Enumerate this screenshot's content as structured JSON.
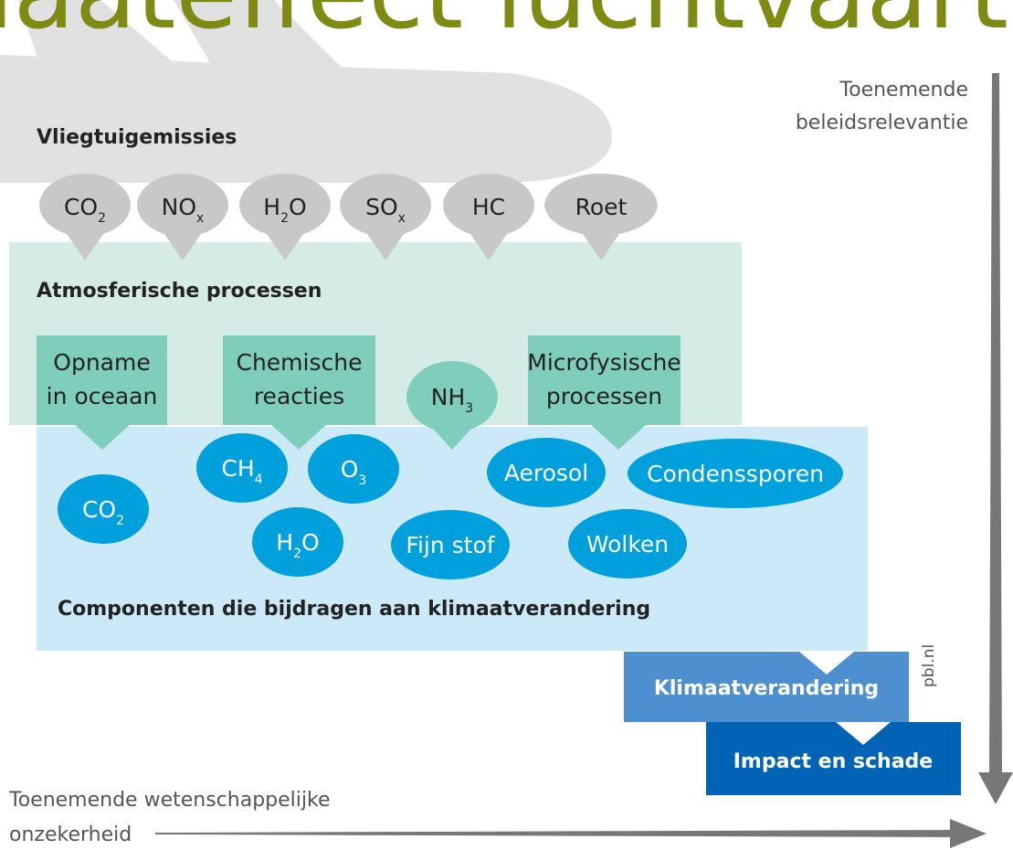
{
  "title": "Klimaateffect luchtvaart",
  "emissions": {
    "heading": "Vliegtuigemissies",
    "items": [
      {
        "label": "CO",
        "sub": "2"
      },
      {
        "label": "NO",
        "sub": "x"
      },
      {
        "label": "H",
        "sub": "2",
        "after": "O"
      },
      {
        "label": "SO",
        "sub": "x"
      },
      {
        "label": "HC"
      },
      {
        "label": "Roet"
      }
    ]
  },
  "atmosphere": {
    "heading": "Atmosferische processen",
    "boxes": [
      [
        "Opname",
        "in oceaan"
      ],
      [
        "Chemische",
        "reacties"
      ],
      [
        "Microfysische",
        "processen"
      ]
    ],
    "nh3": {
      "label": "NH",
      "sub": "3"
    }
  },
  "components": {
    "heading": "Componenten die bijdragen aan klimaatverandering",
    "items": [
      {
        "label": "CO",
        "sub": "2"
      },
      {
        "label": "CH",
        "sub": "4"
      },
      {
        "label": "O",
        "sub": "3"
      },
      {
        "label": "H",
        "sub": "2",
        "after": "O"
      },
      {
        "label": "Fijn stof"
      },
      {
        "label": "Aerosol"
      },
      {
        "label": "Condenssporen"
      },
      {
        "label": "Wolken"
      }
    ]
  },
  "climate_change": "Klimaatverandering",
  "impact": "Impact en schade",
  "source": "pbl.nl",
  "axis_policy": [
    "Toenemende",
    "beleidsrelevantie"
  ],
  "axis_uncertainty": [
    "Toenemende wetenschappelijke",
    "onzekerheid"
  ]
}
